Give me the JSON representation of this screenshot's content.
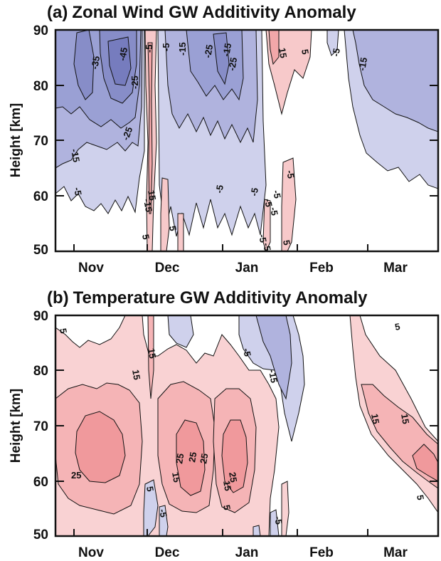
{
  "chart_data": [
    {
      "type": "heatmap",
      "panel": "(a)",
      "title": "Zonal Wind GW Additivity Anomaly",
      "ylabel": "Height [km]",
      "xlabel": "",
      "ylim": [
        50,
        90
      ],
      "yticks": [
        50,
        60,
        70,
        80,
        90
      ],
      "xticks": [
        "Nov",
        "Dec",
        "Jan",
        "Feb",
        "Mar"
      ],
      "colors": {
        "negative": "#8b90c9",
        "positive": "#f39ea0"
      },
      "contour_labels": [
        "-35",
        "-45",
        "-5",
        "-15",
        "-25",
        "-5",
        "-5",
        "-15",
        "-25",
        "-15",
        "-25",
        "15",
        "5",
        "-5",
        "-15",
        "-25",
        "-15",
        "-5",
        "-5",
        "-5",
        "-5",
        "15",
        "-5",
        "-5",
        "-5",
        "5",
        "5",
        "-5",
        "5"
      ]
    },
    {
      "type": "heatmap",
      "panel": "(b)",
      "title": "Temperature GW Additivity Anomaly",
      "ylabel": "Height [km]",
      "xlabel": "",
      "ylim": [
        50,
        90
      ],
      "yticks": [
        50,
        60,
        70,
        80,
        90
      ],
      "xticks": [
        "Nov",
        "Dec",
        "Jan",
        "Feb",
        "Mar"
      ],
      "colors": {
        "negative": "#8b90c9",
        "positive": "#f39ea0"
      },
      "contour_labels": [
        "5",
        "15",
        "15",
        "-5",
        "-15",
        "5",
        "15",
        "15",
        "25",
        "25",
        "25",
        "25",
        "25",
        "15",
        "15",
        "5",
        "-5",
        "-5",
        "5",
        "5"
      ]
    }
  ]
}
